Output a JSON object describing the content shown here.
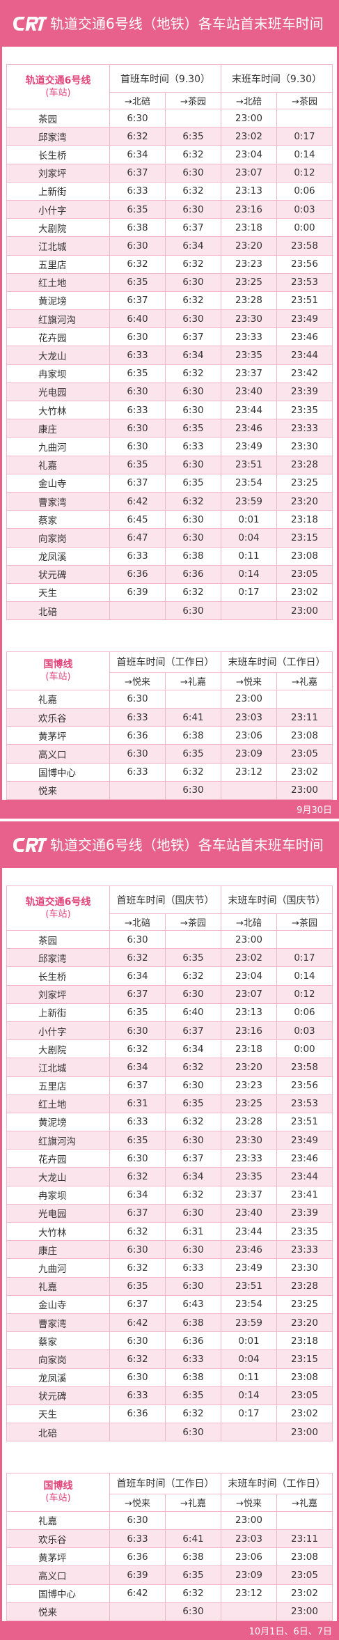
{
  "colors": {
    "brand_pink": "#e8618c",
    "row_alt": "#fce4ec",
    "grid_line": "#f2b6c9",
    "accent_text": "#e2457a"
  },
  "logo_icon": "crt-logo",
  "sections": [
    {
      "title": "轨道交通6号线（地铁）各车站首末班车时间",
      "main_table": {
        "station_header": "轨道交通6号线",
        "station_subheader": "(车站)",
        "first_header": "首班车时间（9.30）",
        "last_header": "末班车时间（9.30）",
        "directions": [
          "→北碚",
          "→茶园",
          "→北碚",
          "→茶园"
        ],
        "rows": [
          {
            "station": "茶园",
            "times": [
              "6:30",
              "",
              "23:00",
              ""
            ]
          },
          {
            "station": "邱家湾",
            "times": [
              "6:32",
              "6:35",
              "23:02",
              "0:17"
            ]
          },
          {
            "station": "长生桥",
            "times": [
              "6:34",
              "6:32",
              "23:04",
              "0:14"
            ]
          },
          {
            "station": "刘家坪",
            "times": [
              "6:37",
              "6:30",
              "23:07",
              "0:12"
            ]
          },
          {
            "station": "上新街",
            "times": [
              "6:33",
              "6:32",
              "23:13",
              "0:06"
            ]
          },
          {
            "station": "小什字",
            "times": [
              "6:35",
              "6:30",
              "23:16",
              "0:03"
            ]
          },
          {
            "station": "大剧院",
            "times": [
              "6:38",
              "6:37",
              "23:18",
              "0:00"
            ]
          },
          {
            "station": "江北城",
            "times": [
              "6:30",
              "6:34",
              "23:20",
              "23:58"
            ]
          },
          {
            "station": "五里店",
            "times": [
              "6:32",
              "6:32",
              "23:23",
              "23:56"
            ]
          },
          {
            "station": "红土地",
            "times": [
              "6:35",
              "6:30",
              "23:25",
              "23:53"
            ]
          },
          {
            "station": "黄泥塝",
            "times": [
              "6:37",
              "6:32",
              "23:28",
              "23:51"
            ]
          },
          {
            "station": "红旗河沟",
            "times": [
              "6:40",
              "6:30",
              "23:30",
              "23:49"
            ]
          },
          {
            "station": "花卉园",
            "times": [
              "6:30",
              "6:37",
              "23:33",
              "23:46"
            ]
          },
          {
            "station": "大龙山",
            "times": [
              "6:33",
              "6:34",
              "23:35",
              "23:44"
            ]
          },
          {
            "station": "冉家坝",
            "times": [
              "6:35",
              "6:32",
              "23:37",
              "23:42"
            ]
          },
          {
            "station": "光电园",
            "times": [
              "6:30",
              "6:30",
              "23:40",
              "23:39"
            ]
          },
          {
            "station": "大竹林",
            "times": [
              "6:33",
              "6:30",
              "23:44",
              "23:35"
            ]
          },
          {
            "station": "康庄",
            "times": [
              "6:30",
              "6:35",
              "23:46",
              "23:33"
            ]
          },
          {
            "station": "九曲河",
            "times": [
              "6:30",
              "6:33",
              "23:49",
              "23:30"
            ]
          },
          {
            "station": "礼嘉",
            "times": [
              "6:35",
              "6:30",
              "23:51",
              "23:28"
            ]
          },
          {
            "station": "金山寺",
            "times": [
              "6:37",
              "6:35",
              "23:54",
              "23:25"
            ]
          },
          {
            "station": "曹家湾",
            "times": [
              "6:42",
              "6:32",
              "23:59",
              "23:20"
            ]
          },
          {
            "station": "蔡家",
            "times": [
              "6:45",
              "6:30",
              "0:01",
              "23:18"
            ]
          },
          {
            "station": "向家岗",
            "times": [
              "6:47",
              "6:30",
              "0:04",
              "23:15"
            ]
          },
          {
            "station": "龙凤溪",
            "times": [
              "6:33",
              "6:38",
              "0:11",
              "23:08"
            ]
          },
          {
            "station": "状元碑",
            "times": [
              "6:36",
              "6:36",
              "0:14",
              "23:05"
            ]
          },
          {
            "station": "天生",
            "times": [
              "6:39",
              "6:32",
              "0:17",
              "23:02"
            ]
          },
          {
            "station": "北碚",
            "times": [
              "",
              "6:30",
              "",
              "23:00"
            ]
          }
        ]
      },
      "guobo_table": {
        "station_header": "国博线",
        "station_subheader": "(车站)",
        "first_header": "首班车时间（工作日）",
        "last_header": "末班车时间（工作日）",
        "directions": [
          "→悦来",
          "→礼嘉",
          "→悦来",
          "→礼嘉"
        ],
        "rows": [
          {
            "station": "礼嘉",
            "times": [
              "6:30",
              "",
              "23:00",
              ""
            ]
          },
          {
            "station": "欢乐谷",
            "times": [
              "6:33",
              "6:41",
              "23:03",
              "23:11"
            ]
          },
          {
            "station": "黄茅坪",
            "times": [
              "6:36",
              "6:38",
              "23:06",
              "23:08"
            ]
          },
          {
            "station": "高义口",
            "times": [
              "6:30",
              "6:35",
              "23:09",
              "23:05"
            ]
          },
          {
            "station": "国博中心",
            "times": [
              "6:33",
              "6:32",
              "23:12",
              "23:02"
            ]
          },
          {
            "station": "悦来",
            "times": [
              "",
              "6:30",
              "",
              "23:00"
            ]
          }
        ]
      },
      "footer": "9月30日"
    },
    {
      "title": "轨道交通6号线（地铁）各车站首末班车时间",
      "main_table": {
        "station_header": "轨道交通6号线",
        "station_subheader": "(车站)",
        "first_header": "首班车时间（国庆节）",
        "last_header": "末班车时间（国庆节）",
        "directions": [
          "→北碚",
          "→茶园",
          "→北碚",
          "→茶园"
        ],
        "rows": [
          {
            "station": "茶园",
            "times": [
              "6:30",
              "",
              "23:00",
              ""
            ]
          },
          {
            "station": "邱家湾",
            "times": [
              "6:32",
              "6:35",
              "23:02",
              "0:17"
            ]
          },
          {
            "station": "长生桥",
            "times": [
              "6:34",
              "6:32",
              "23:04",
              "0:14"
            ]
          },
          {
            "station": "刘家坪",
            "times": [
              "6:37",
              "6:30",
              "23:07",
              "0:12"
            ]
          },
          {
            "station": "上新街",
            "times": [
              "6:35",
              "6:40",
              "23:13",
              "0:06"
            ]
          },
          {
            "station": "小什字",
            "times": [
              "6:30",
              "6:37",
              "23:16",
              "0:03"
            ]
          },
          {
            "station": "大剧院",
            "times": [
              "6:32",
              "6:34",
              "23:18",
              "0:00"
            ]
          },
          {
            "station": "江北城",
            "times": [
              "6:34",
              "6:32",
              "23:20",
              "23:58"
            ]
          },
          {
            "station": "五里店",
            "times": [
              "6:37",
              "6:30",
              "23:23",
              "23:56"
            ]
          },
          {
            "station": "红土地",
            "times": [
              "6:31",
              "6:35",
              "23:25",
              "23:53"
            ]
          },
          {
            "station": "黄泥塝",
            "times": [
              "6:33",
              "6:32",
              "23:28",
              "23:51"
            ]
          },
          {
            "station": "红旗河沟",
            "times": [
              "6:35",
              "6:30",
              "23:30",
              "23:49"
            ]
          },
          {
            "station": "花卉园",
            "times": [
              "6:30",
              "6:37",
              "23:33",
              "23:46"
            ]
          },
          {
            "station": "大龙山",
            "times": [
              "6:32",
              "6:34",
              "23:35",
              "23:44"
            ]
          },
          {
            "station": "冉家坝",
            "times": [
              "6:34",
              "6:32",
              "23:37",
              "23:41"
            ]
          },
          {
            "station": "光电园",
            "times": [
              "6:37",
              "6:30",
              "23:40",
              "23:39"
            ]
          },
          {
            "station": "大竹林",
            "times": [
              "6:32",
              "6:31",
              "23:44",
              "23:35"
            ]
          },
          {
            "station": "康庄",
            "times": [
              "6:30",
              "6:30",
              "23:46",
              "23:33"
            ]
          },
          {
            "station": "九曲河",
            "times": [
              "6:32",
              "6:33",
              "23:49",
              "23:30"
            ]
          },
          {
            "station": "礼嘉",
            "times": [
              "6:35",
              "6:30",
              "23:51",
              "23:28"
            ]
          },
          {
            "station": "金山寺",
            "times": [
              "6:37",
              "6:43",
              "23:54",
              "23:25"
            ]
          },
          {
            "station": "曹家湾",
            "times": [
              "6:42",
              "6:38",
              "23:59",
              "23:20"
            ]
          },
          {
            "station": "蔡家",
            "times": [
              "6:30",
              "6:36",
              "0:01",
              "23:18"
            ]
          },
          {
            "station": "向家岗",
            "times": [
              "6:32",
              "6:33",
              "0:04",
              "23:15"
            ]
          },
          {
            "station": "龙凤溪",
            "times": [
              "6:30",
              "6:38",
              "0:11",
              "23:08"
            ]
          },
          {
            "station": "状元碑",
            "times": [
              "6:33",
              "6:35",
              "0:14",
              "23:05"
            ]
          },
          {
            "station": "天生",
            "times": [
              "6:36",
              "6:32",
              "0:17",
              "23:02"
            ]
          },
          {
            "station": "北碚",
            "times": [
              "",
              "6:30",
              "",
              "23:00"
            ]
          }
        ]
      },
      "guobo_table": {
        "station_header": "国博线",
        "station_subheader": "(车站)",
        "first_header": "首班车时间（工作日）",
        "last_header": "末班车时间（工作日）",
        "directions": [
          "→悦来",
          "→礼嘉",
          "→悦来",
          "→礼嘉"
        ],
        "rows": [
          {
            "station": "礼嘉",
            "times": [
              "6:30",
              "",
              "23:00",
              ""
            ]
          },
          {
            "station": "欢乐谷",
            "times": [
              "6:33",
              "6:41",
              "23:03",
              "23:11"
            ]
          },
          {
            "station": "黄茅坪",
            "times": [
              "6:36",
              "6:38",
              "23:06",
              "23:08"
            ]
          },
          {
            "station": "高义口",
            "times": [
              "6:39",
              "6:35",
              "23:09",
              "23:05"
            ]
          },
          {
            "station": "国博中心",
            "times": [
              "6:42",
              "6:32",
              "23:12",
              "23:02"
            ]
          },
          {
            "station": "悦来",
            "times": [
              "",
              "6:30",
              "",
              "23:00"
            ]
          }
        ]
      },
      "footer": "10月1日、6日、7日"
    }
  ]
}
